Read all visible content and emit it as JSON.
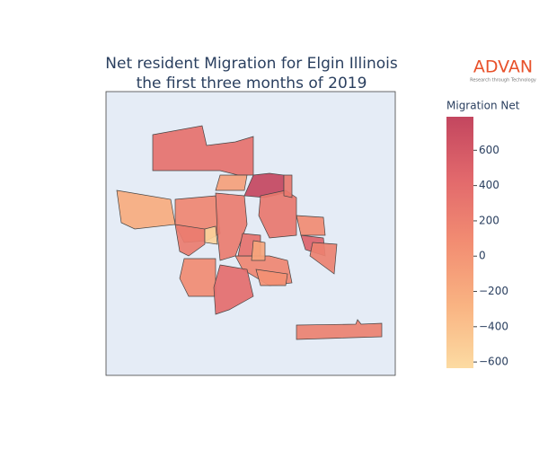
{
  "chart_data": {
    "type": "choropleth",
    "title": [
      "Net resident Migration for Elgin Illinois",
      "the first three months of 2019"
    ],
    "logo": {
      "name": "ADVAN",
      "tagline": "Research through Technology"
    },
    "colorbar": {
      "title": "Migration Net",
      "clim": [
        -635,
        790
      ],
      "ticks": [
        {
          "value": -600,
          "label": "−600"
        },
        {
          "value": -400,
          "label": "−400"
        },
        {
          "value": -200,
          "label": "−200"
        },
        0,
        200,
        400,
        600
      ],
      "colorscale": [
        "#fcdba2",
        "#f9b382",
        "#f28d72",
        "#e2696c",
        "#c3465f"
      ]
    },
    "values": [
      350,
      780,
      -200,
      -100,
      150,
      -550,
      250,
      300,
      100,
      500,
      200,
      150,
      -150,
      100,
      400,
      50,
      200,
      300,
      350,
      250
    ]
  }
}
